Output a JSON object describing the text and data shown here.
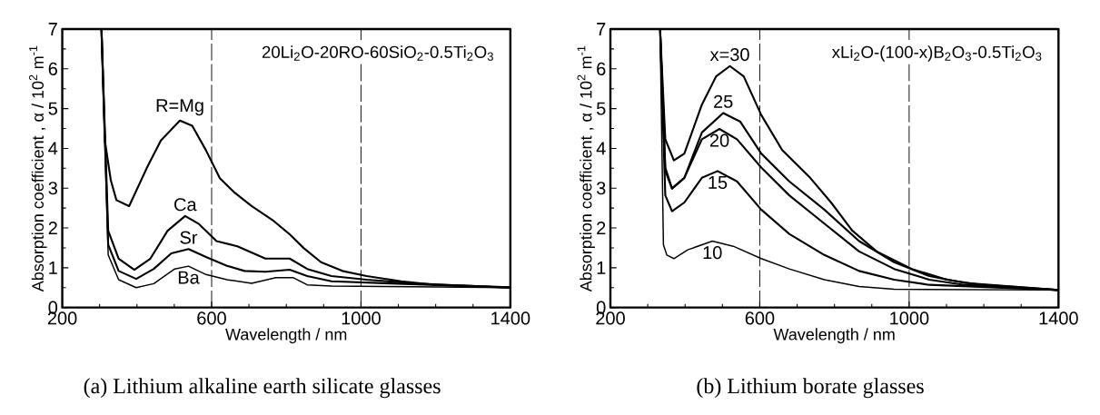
{
  "chart_data": [
    {
      "type": "line",
      "title": "(a)  Lithium alkaline earth silicate glasses",
      "xlabel": "Wavelength  /  nm",
      "ylabel": "Absorption coefficient , α  /  10$^{2}$ m$^{-1}$",
      "annotations": [
        "20Li$_{2}$O-20RO-60SiO$_{2}$-0.5Ti$_{2}$O$_{3}$"
      ],
      "xlim": [
        200,
        1400
      ],
      "ylim": [
        0,
        7
      ],
      "xticks": [
        200,
        600,
        1000,
        1400
      ],
      "yticks": [
        0,
        1,
        2,
        3,
        4,
        5,
        6,
        7
      ],
      "grid": "x",
      "series": [
        {
          "name": "R=Mg",
          "color": "#000000",
          "x": [
            305,
            314,
            330,
            345,
            379,
            426,
            464,
            515,
            548,
            585,
            622,
            660,
            707,
            763,
            809,
            847,
            893,
            950,
            1015,
            1108,
            1202,
            1400
          ],
          "values": [
            7.0,
            4.2,
            3.2,
            2.7,
            2.55,
            3.5,
            4.2,
            4.7,
            4.57,
            3.95,
            3.25,
            2.9,
            2.55,
            2.2,
            1.84,
            1.49,
            1.14,
            0.92,
            0.79,
            0.66,
            0.57,
            0.51
          ]
        },
        {
          "name": "Ca",
          "color": "#000000",
          "x": [
            305,
            323,
            351,
            393,
            436,
            482,
            529,
            566,
            613,
            669,
            744,
            809,
            856,
            921,
            1015,
            1155,
            1400
          ],
          "values": [
            7.0,
            1.93,
            1.23,
            0.95,
            1.23,
            1.93,
            2.3,
            2.1,
            1.67,
            1.54,
            1.23,
            1.23,
            0.97,
            0.79,
            0.7,
            0.6,
            0.5
          ]
        },
        {
          "name": "Sr",
          "color": "#000000",
          "x": [
            305,
            323,
            351,
            398,
            445,
            492,
            538,
            585,
            641,
            688,
            744,
            809,
            856,
            921,
            1062,
            1400
          ],
          "values": [
            7.0,
            1.58,
            0.92,
            0.72,
            0.97,
            1.36,
            1.47,
            1.27,
            1.05,
            0.92,
            0.9,
            0.95,
            0.79,
            0.66,
            0.61,
            0.5
          ]
        },
        {
          "name": "Ba",
          "color": "#000000",
          "x": [
            305,
            323,
            351,
            398,
            445,
            501,
            538,
            585,
            641,
            707,
            772,
            819,
            856,
            921,
            1400
          ],
          "values": [
            7.0,
            1.32,
            0.7,
            0.5,
            0.6,
            0.97,
            1.04,
            0.83,
            0.7,
            0.61,
            0.75,
            0.75,
            0.57,
            0.54,
            0.5
          ]
        }
      ]
    },
    {
      "type": "line",
      "title": "(b)  Lithium borate glasses",
      "xlabel": "Wavelength  /  nm",
      "ylabel": "Absorption coefficient , α  /  10$^{2}$ m$^{-1}$",
      "annotations": [
        "xLi$_{2}$O-(100-x)B$_{2}$O$_{3}$-0.5Ti$_{2}$O$_{3}$"
      ],
      "xlim": [
        200,
        1400
      ],
      "ylim": [
        0,
        7
      ],
      "xticks": [
        200,
        600,
        1000,
        1400
      ],
      "yticks": [
        0,
        1,
        2,
        3,
        4,
        5,
        6,
        7
      ],
      "grid": "x",
      "series": [
        {
          "name": "x=30",
          "color": "#000000",
          "x": [
            333,
            347,
            370,
            398,
            445,
            483,
            520,
            557,
            604,
            660,
            735,
            791,
            847,
            913,
            1007,
            1101,
            1194,
            1400
          ],
          "values": [
            7.0,
            4.23,
            3.7,
            3.87,
            5.1,
            5.81,
            6.07,
            5.81,
            4.84,
            3.96,
            3.26,
            2.64,
            1.94,
            1.41,
            0.97,
            0.7,
            0.57,
            0.44
          ]
        },
        {
          "name": "25",
          "color": "#000000",
          "x": [
            333,
            347,
            365,
            398,
            445,
            502,
            548,
            604,
            679,
            773,
            866,
            960,
            1054,
            1148,
            1400
          ],
          "values": [
            7.0,
            3.52,
            2.99,
            3.26,
            4.4,
            4.89,
            4.67,
            3.87,
            3.17,
            2.46,
            1.67,
            1.14,
            0.79,
            0.62,
            0.44
          ]
        },
        {
          "name": "20",
          "color": "#000000",
          "x": [
            333,
            347,
            365,
            398,
            445,
            492,
            539,
            604,
            679,
            773,
            866,
            960,
            1054,
            1148,
            1400
          ],
          "values": [
            7.0,
            3.43,
            2.99,
            3.26,
            4.23,
            4.49,
            4.23,
            3.52,
            2.82,
            2.11,
            1.41,
            0.97,
            0.7,
            0.57,
            0.44
          ]
        },
        {
          "name": "15",
          "color": "#000000",
          "x": [
            333,
            347,
            365,
            398,
            445,
            487,
            539,
            604,
            679,
            773,
            866,
            960,
            1054,
            1400
          ],
          "values": [
            7.0,
            2.82,
            2.42,
            2.64,
            3.26,
            3.43,
            3.17,
            2.46,
            1.85,
            1.32,
            0.92,
            0.7,
            0.57,
            0.44
          ]
        },
        {
          "name": "10",
          "color": "#000000",
          "x": [
            333,
            342,
            351,
            370,
            407,
            473,
            529,
            604,
            679,
            773,
            866,
            960,
            1400
          ],
          "values": [
            7.0,
            1.58,
            1.32,
            1.23,
            1.45,
            1.67,
            1.54,
            1.23,
            0.97,
            0.7,
            0.53,
            0.46,
            0.44
          ]
        }
      ]
    }
  ]
}
